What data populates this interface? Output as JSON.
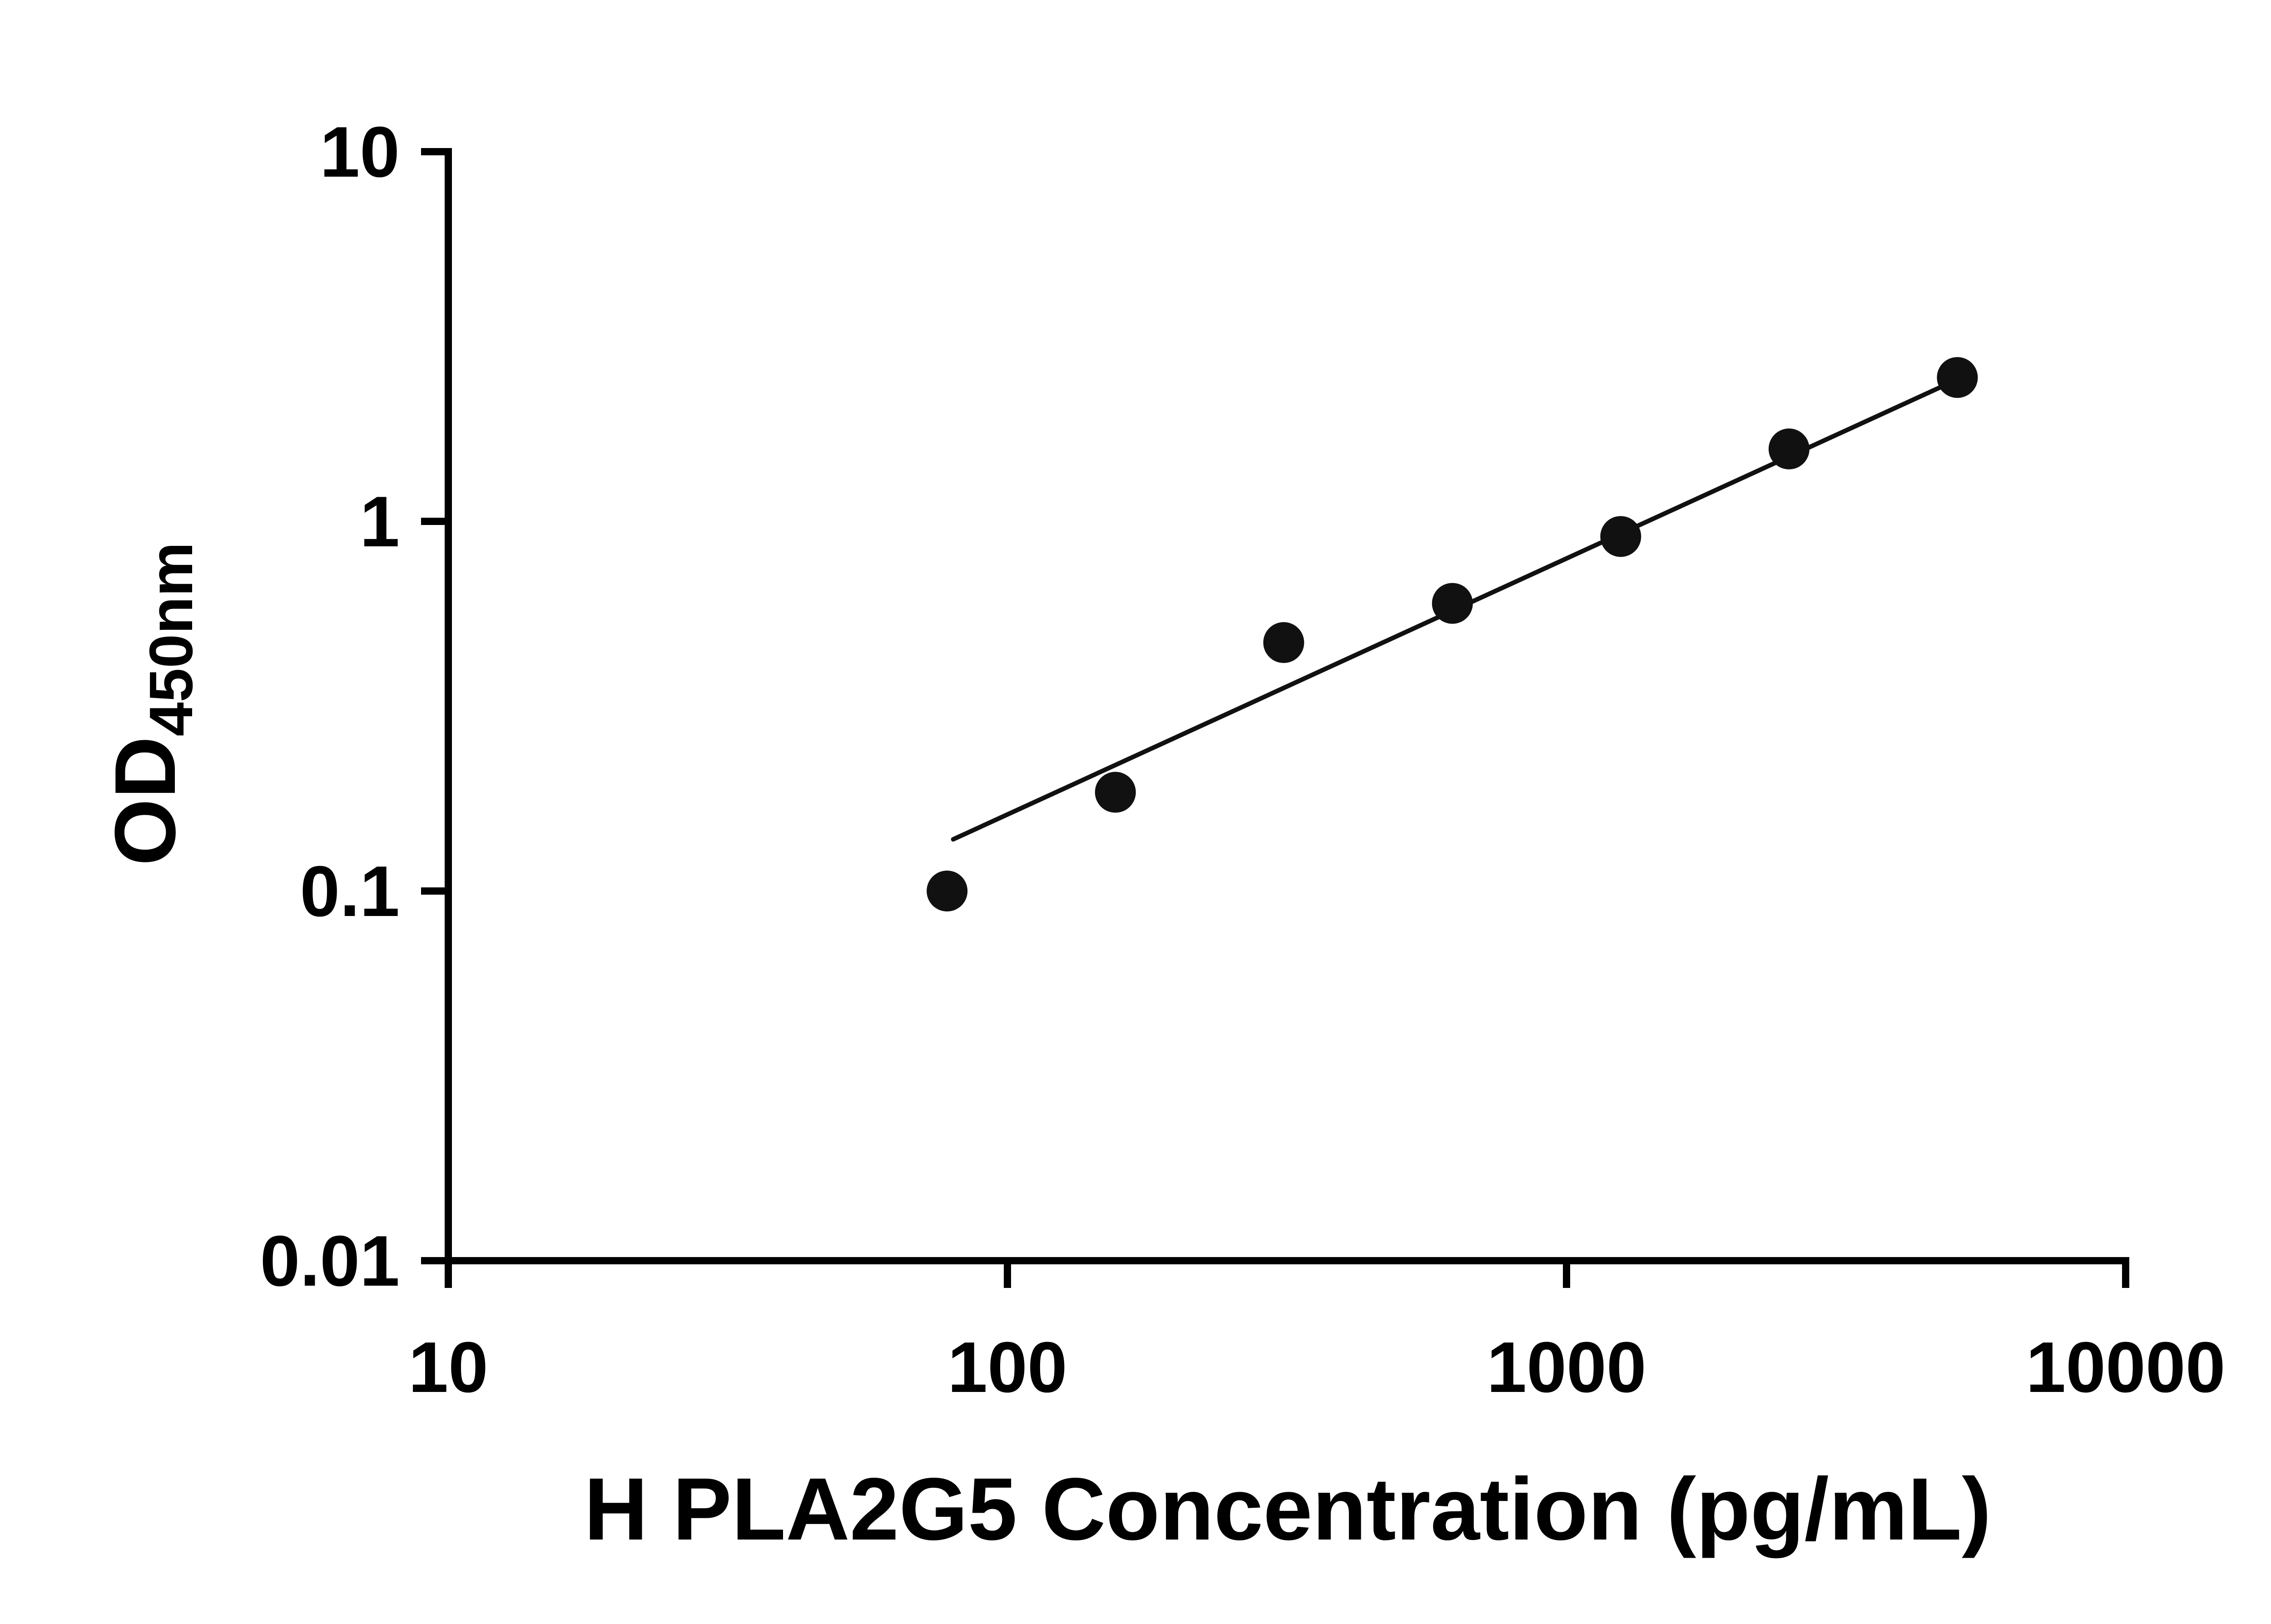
{
  "chart_data": {
    "type": "scatter",
    "title": "",
    "xlabel": "H PLA2G5 Concentration (pg/mL)",
    "ylabel_main": "OD",
    "ylabel_sub": "450nm",
    "x_scale": "log",
    "y_scale": "log",
    "xlim": [
      10,
      10000
    ],
    "ylim": [
      0.01,
      10
    ],
    "x_ticks": [
      10,
      100,
      1000,
      10000
    ],
    "x_tick_labels": [
      "10",
      "100",
      "1000",
      "10000"
    ],
    "y_ticks": [
      0.01,
      0.1,
      1,
      10
    ],
    "y_tick_labels": [
      "0.01",
      "0.1",
      "1",
      "10"
    ],
    "grid": false,
    "legend": null,
    "marker_color": "#111111",
    "line_color": "#111111",
    "axis_color": "#000000",
    "points": [
      {
        "x": 78,
        "y": 0.1
      },
      {
        "x": 156,
        "y": 0.185
      },
      {
        "x": 312,
        "y": 0.47
      },
      {
        "x": 625,
        "y": 0.6
      },
      {
        "x": 1250,
        "y": 0.91
      },
      {
        "x": 2500,
        "y": 1.57
      },
      {
        "x": 5000,
        "y": 2.45
      }
    ],
    "trendline": {
      "x1": 80,
      "y1": 0.138,
      "x2": 5000,
      "y2": 2.42
    }
  }
}
